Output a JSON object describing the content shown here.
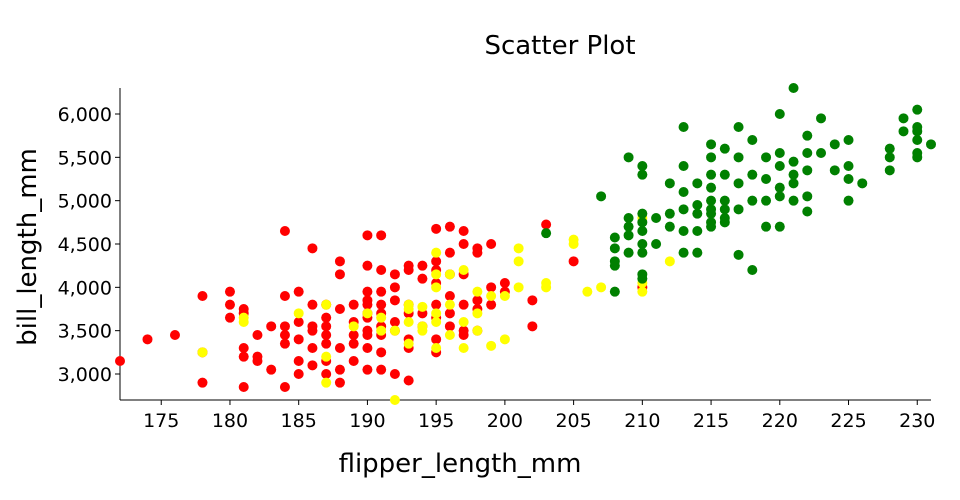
{
  "chart_data": {
    "type": "scatter",
    "title": "Scatter Plot",
    "xlabel": "flipper_length_mm",
    "ylabel": "bill_length_mm",
    "xlim": [
      172,
      231
    ],
    "ylim": [
      2700,
      6300
    ],
    "grid": false,
    "legend": "none",
    "x_ticks": [
      175,
      180,
      185,
      190,
      195,
      200,
      205,
      210,
      215,
      220,
      225,
      230
    ],
    "y_ticks": [
      3000,
      3500,
      4000,
      4500,
      5000,
      5500,
      6000
    ],
    "x_tick_labels": [
      "175",
      "180",
      "185",
      "190",
      "195",
      "200",
      "205",
      "210",
      "215",
      "220",
      "225",
      "230"
    ],
    "y_tick_labels": [
      "3,000",
      "3,500",
      "4,000",
      "4,500",
      "5,000",
      "5,500",
      "6,000"
    ],
    "series": [
      {
        "color": "#ff0000",
        "points": [
          [
            172,
            3150
          ],
          [
            174,
            3400
          ],
          [
            176,
            3450
          ],
          [
            178,
            3900
          ],
          [
            178,
            3250
          ],
          [
            178,
            2900
          ],
          [
            180,
            3950
          ],
          [
            180,
            3800
          ],
          [
            180,
            3650
          ],
          [
            181,
            3750
          ],
          [
            181,
            3700
          ],
          [
            181,
            3300
          ],
          [
            181,
            3200
          ],
          [
            181,
            2850
          ],
          [
            182,
            3450
          ],
          [
            182,
            3200
          ],
          [
            182,
            3150
          ],
          [
            183,
            3550
          ],
          [
            183,
            3050
          ],
          [
            184,
            4650
          ],
          [
            184,
            3900
          ],
          [
            184,
            3550
          ],
          [
            184,
            3450
          ],
          [
            184,
            3350
          ],
          [
            184,
            2850
          ],
          [
            185,
            3950
          ],
          [
            185,
            3600
          ],
          [
            185,
            3400
          ],
          [
            185,
            3150
          ],
          [
            185,
            3000
          ],
          [
            186,
            4450
          ],
          [
            186,
            3800
          ],
          [
            186,
            3550
          ],
          [
            186,
            3500
          ],
          [
            186,
            3300
          ],
          [
            186,
            3100
          ],
          [
            187,
            3800
          ],
          [
            187,
            3650
          ],
          [
            187,
            3550
          ],
          [
            187,
            3450
          ],
          [
            187,
            3350
          ],
          [
            187,
            3150
          ],
          [
            187,
            3000
          ],
          [
            188,
            4300
          ],
          [
            188,
            4150
          ],
          [
            188,
            3750
          ],
          [
            188,
            3300
          ],
          [
            188,
            3050
          ],
          [
            188,
            2900
          ],
          [
            189,
            3800
          ],
          [
            189,
            3600
          ],
          [
            189,
            3450
          ],
          [
            189,
            3350
          ],
          [
            189,
            3150
          ],
          [
            190,
            4600
          ],
          [
            190,
            4250
          ],
          [
            190,
            3950
          ],
          [
            190,
            3850
          ],
          [
            190,
            3800
          ],
          [
            190,
            3700
          ],
          [
            190,
            3650
          ],
          [
            190,
            3500
          ],
          [
            190,
            3450
          ],
          [
            190,
            3300
          ],
          [
            190,
            3050
          ],
          [
            191,
            4600
          ],
          [
            191,
            4200
          ],
          [
            191,
            3950
          ],
          [
            191,
            3800
          ],
          [
            191,
            3700
          ],
          [
            191,
            3550
          ],
          [
            191,
            3450
          ],
          [
            191,
            3250
          ],
          [
            191,
            3050
          ],
          [
            192,
            4150
          ],
          [
            192,
            4000
          ],
          [
            192,
            3850
          ],
          [
            192,
            3600
          ],
          [
            192,
            3500
          ],
          [
            192,
            3000
          ],
          [
            193,
            4250
          ],
          [
            193,
            4200
          ],
          [
            193,
            3800
          ],
          [
            193,
            3700
          ],
          [
            193,
            3400
          ],
          [
            193,
            3300
          ],
          [
            193,
            2925
          ],
          [
            194,
            4250
          ],
          [
            194,
            4100
          ],
          [
            194,
            3700
          ],
          [
            194,
            3550
          ],
          [
            195,
            4675
          ],
          [
            195,
            4300
          ],
          [
            195,
            4200
          ],
          [
            195,
            4050
          ],
          [
            195,
            3800
          ],
          [
            195,
            3650
          ],
          [
            195,
            3400
          ],
          [
            195,
            3250
          ],
          [
            196,
            4700
          ],
          [
            196,
            4400
          ],
          [
            196,
            4150
          ],
          [
            196,
            3900
          ],
          [
            196,
            3700
          ],
          [
            196,
            3550
          ],
          [
            197,
            4650
          ],
          [
            197,
            4500
          ],
          [
            197,
            4150
          ],
          [
            197,
            3800
          ],
          [
            197,
            3500
          ],
          [
            197,
            3450
          ],
          [
            198,
            4450
          ],
          [
            198,
            4400
          ],
          [
            198,
            3850
          ],
          [
            198,
            3750
          ],
          [
            198,
            3500
          ],
          [
            199,
            4500
          ],
          [
            199,
            4000
          ],
          [
            199,
            3800
          ],
          [
            200,
            4050
          ],
          [
            200,
            3950
          ],
          [
            202,
            3850
          ],
          [
            202,
            3550
          ],
          [
            203,
            4725
          ],
          [
            205,
            4300
          ],
          [
            210,
            4000
          ]
        ]
      },
      {
        "color": "#ffff00",
        "points": [
          [
            178,
            3250
          ],
          [
            181,
            3650
          ],
          [
            181,
            3600
          ],
          [
            185,
            3700
          ],
          [
            187,
            3800
          ],
          [
            187,
            3200
          ],
          [
            187,
            2900
          ],
          [
            189,
            3550
          ],
          [
            190,
            3700
          ],
          [
            191,
            3650
          ],
          [
            191,
            3500
          ],
          [
            192,
            3500
          ],
          [
            192,
            2700
          ],
          [
            193,
            3800
          ],
          [
            193,
            3750
          ],
          [
            193,
            3600
          ],
          [
            193,
            3350
          ],
          [
            194,
            3775
          ],
          [
            194,
            3550
          ],
          [
            194,
            3500
          ],
          [
            195,
            4400
          ],
          [
            195,
            4150
          ],
          [
            195,
            4000
          ],
          [
            195,
            3700
          ],
          [
            195,
            3600
          ],
          [
            195,
            3300
          ],
          [
            196,
            4150
          ],
          [
            196,
            3800
          ],
          [
            196,
            3450
          ],
          [
            197,
            4200
          ],
          [
            197,
            3600
          ],
          [
            197,
            3300
          ],
          [
            198,
            3950
          ],
          [
            198,
            3700
          ],
          [
            198,
            3500
          ],
          [
            199,
            3900
          ],
          [
            199,
            3325
          ],
          [
            200,
            3900
          ],
          [
            200,
            3400
          ],
          [
            201,
            4450
          ],
          [
            201,
            4300
          ],
          [
            201,
            4000
          ],
          [
            203,
            4050
          ],
          [
            203,
            4000
          ],
          [
            205,
            4550
          ],
          [
            205,
            4500
          ],
          [
            206,
            3950
          ],
          [
            207,
            4000
          ],
          [
            210,
            4800
          ],
          [
            210,
            4050
          ],
          [
            210,
            3950
          ],
          [
            212,
            4300
          ]
        ]
      },
      {
        "color": "#008000",
        "points": [
          [
            203,
            4625
          ],
          [
            207,
            5050
          ],
          [
            208,
            4575
          ],
          [
            208,
            4450
          ],
          [
            208,
            4300
          ],
          [
            208,
            4250
          ],
          [
            208,
            3950
          ],
          [
            209,
            5500
          ],
          [
            209,
            4800
          ],
          [
            209,
            4700
          ],
          [
            209,
            4600
          ],
          [
            209,
            4400
          ],
          [
            210,
            5400
          ],
          [
            210,
            5300
          ],
          [
            210,
            4850
          ],
          [
            210,
            4750
          ],
          [
            210,
            4650
          ],
          [
            210,
            4500
          ],
          [
            210,
            4400
          ],
          [
            210,
            4150
          ],
          [
            210,
            4100
          ],
          [
            211,
            4800
          ],
          [
            211,
            4500
          ],
          [
            212,
            5200
          ],
          [
            212,
            4850
          ],
          [
            212,
            4700
          ],
          [
            213,
            5850
          ],
          [
            213,
            5400
          ],
          [
            213,
            5100
          ],
          [
            213,
            4900
          ],
          [
            213,
            4650
          ],
          [
            213,
            4400
          ],
          [
            214,
            5200
          ],
          [
            214,
            4950
          ],
          [
            214,
            4850
          ],
          [
            214,
            4650
          ],
          [
            214,
            4400
          ],
          [
            215,
            5650
          ],
          [
            215,
            5500
          ],
          [
            215,
            5300
          ],
          [
            215,
            5150
          ],
          [
            215,
            5000
          ],
          [
            215,
            4900
          ],
          [
            215,
            4850
          ],
          [
            215,
            4750
          ],
          [
            215,
            4700
          ],
          [
            216,
            5600
          ],
          [
            216,
            5300
          ],
          [
            216,
            5000
          ],
          [
            216,
            4900
          ],
          [
            216,
            4800
          ],
          [
            216,
            4750
          ],
          [
            217,
            5850
          ],
          [
            217,
            5500
          ],
          [
            217,
            5200
          ],
          [
            217,
            4900
          ],
          [
            217,
            4375
          ],
          [
            218,
            5700
          ],
          [
            218,
            5300
          ],
          [
            218,
            5000
          ],
          [
            218,
            4200
          ],
          [
            219,
            5500
          ],
          [
            219,
            5250
          ],
          [
            219,
            5000
          ],
          [
            219,
            4700
          ],
          [
            220,
            6000
          ],
          [
            220,
            5550
          ],
          [
            220,
            5400
          ],
          [
            220,
            5150
          ],
          [
            220,
            5050
          ],
          [
            220,
            4700
          ],
          [
            221,
            6300
          ],
          [
            221,
            5450
          ],
          [
            221,
            5300
          ],
          [
            221,
            5200
          ],
          [
            221,
            5000
          ],
          [
            222,
            5750
          ],
          [
            222,
            5550
          ],
          [
            222,
            5350
          ],
          [
            222,
            5050
          ],
          [
            222,
            4875
          ],
          [
            223,
            5950
          ],
          [
            223,
            5550
          ],
          [
            224,
            5650
          ],
          [
            224,
            5350
          ],
          [
            225,
            5700
          ],
          [
            225,
            5400
          ],
          [
            225,
            5250
          ],
          [
            225,
            5000
          ],
          [
            226,
            5200
          ],
          [
            228,
            5600
          ],
          [
            228,
            5500
          ],
          [
            228,
            5350
          ],
          [
            229,
            5950
          ],
          [
            229,
            5800
          ],
          [
            230,
            6050
          ],
          [
            230,
            5850
          ],
          [
            230,
            5800
          ],
          [
            230,
            5700
          ],
          [
            230,
            5550
          ],
          [
            230,
            5500
          ],
          [
            231,
            5650
          ]
        ]
      }
    ]
  }
}
